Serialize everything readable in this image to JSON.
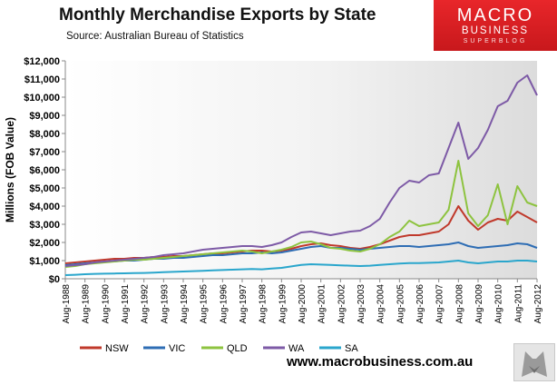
{
  "header": {
    "title": "Monthly Merchandise Exports by State",
    "source": "Source:  Australian Bureau of Statistics"
  },
  "logo": {
    "line1": "MACRO",
    "line2": "BUSINESS",
    "line3": "SUPERBLOG"
  },
  "footer": {
    "url": "www.macrobusiness.com.au"
  },
  "badge_icon": "wolf-icon",
  "chart_data": {
    "type": "line",
    "title": "Monthly Merchandise Exports by State",
    "subtitle": "Source:  Australian Bureau of Statistics",
    "ylabel": "Millions (FOB Value)",
    "xlabel": "",
    "ylim": [
      0,
      12000
    ],
    "grid": false,
    "legend": "bottom",
    "y_ticks": [
      0,
      1000,
      2000,
      3000,
      4000,
      5000,
      6000,
      7000,
      8000,
      9000,
      10000,
      11000,
      12000
    ],
    "y_tick_labels": [
      "$0",
      "$1,000",
      "$2,000",
      "$3,000",
      "$4,000",
      "$5,000",
      "$6,000",
      "$7,000",
      "$8,000",
      "$9,000",
      "$10,000",
      "$11,000",
      "$12,000"
    ],
    "x_tick_labels": [
      "Aug-1988",
      "Aug-1989",
      "Aug-1990",
      "Aug-1991",
      "Aug-1992",
      "Aug-1993",
      "Aug-1994",
      "Aug-1995",
      "Aug-1996",
      "Aug-1997",
      "Aug-1998",
      "Aug-1999",
      "Aug-2000",
      "Aug-2001",
      "Aug-2002",
      "Aug-2003",
      "Aug-2004",
      "Aug-2005",
      "Aug-2006",
      "Aug-2007",
      "Aug-2008",
      "Aug-2009",
      "Aug-2010",
      "Aug-2011",
      "Aug-2012"
    ],
    "x": [
      "Aug-1988",
      "Feb-1989",
      "Aug-1989",
      "Feb-1990",
      "Aug-1990",
      "Feb-1991",
      "Aug-1991",
      "Feb-1992",
      "Aug-1992",
      "Feb-1993",
      "Aug-1993",
      "Feb-1994",
      "Aug-1994",
      "Feb-1995",
      "Aug-1995",
      "Feb-1996",
      "Aug-1996",
      "Feb-1997",
      "Aug-1997",
      "Feb-1998",
      "Aug-1998",
      "Feb-1999",
      "Aug-1999",
      "Feb-2000",
      "Aug-2000",
      "Feb-2001",
      "Aug-2001",
      "Feb-2002",
      "Aug-2002",
      "Feb-2003",
      "Aug-2003",
      "Feb-2004",
      "Aug-2004",
      "Feb-2005",
      "Aug-2005",
      "Feb-2006",
      "Aug-2006",
      "Feb-2007",
      "Aug-2007",
      "Feb-2008",
      "Aug-2008",
      "Feb-2009",
      "Aug-2009",
      "Feb-2010",
      "Aug-2010",
      "Feb-2011",
      "Aug-2011",
      "Feb-2012",
      "Aug-2012"
    ],
    "series": [
      {
        "name": "NSW",
        "color": "#c0392b",
        "values": [
          850,
          900,
          950,
          1000,
          1050,
          1100,
          1100,
          1150,
          1150,
          1200,
          1200,
          1250,
          1250,
          1300,
          1350,
          1400,
          1400,
          1450,
          1500,
          1550,
          1550,
          1500,
          1550,
          1650,
          1800,
          1900,
          1950,
          1850,
          1800,
          1700,
          1650,
          1750,
          1900,
          2100,
          2300,
          2400,
          2400,
          2500,
          2600,
          3000,
          4000,
          3200,
          2700,
          3100,
          3300,
          3200,
          3700,
          3400,
          3100
        ]
      },
      {
        "name": "VIC",
        "color": "#2e6db4",
        "values": [
          750,
          800,
          850,
          900,
          950,
          950,
          1000,
          1000,
          1050,
          1100,
          1100,
          1150,
          1150,
          1200,
          1250,
          1300,
          1300,
          1350,
          1400,
          1400,
          1450,
          1400,
          1450,
          1550,
          1650,
          1750,
          1800,
          1700,
          1700,
          1650,
          1600,
          1650,
          1700,
          1750,
          1800,
          1800,
          1750,
          1800,
          1850,
          1900,
          2000,
          1800,
          1700,
          1750,
          1800,
          1850,
          1950,
          1900,
          1700
        ]
      },
      {
        "name": "QLD",
        "color": "#8dc33f",
        "values": [
          650,
          700,
          800,
          850,
          900,
          950,
          1000,
          1050,
          1050,
          1100,
          1150,
          1200,
          1250,
          1300,
          1350,
          1400,
          1450,
          1500,
          1550,
          1500,
          1400,
          1500,
          1600,
          1750,
          2000,
          2050,
          1900,
          1700,
          1650,
          1550,
          1500,
          1650,
          1900,
          2300,
          2600,
          3200,
          2900,
          3000,
          3100,
          3800,
          6500,
          3600,
          2900,
          3500,
          5200,
          3000,
          5100,
          4200,
          4000
        ]
      },
      {
        "name": "WA",
        "color": "#7d5aa6",
        "values": [
          700,
          750,
          800,
          900,
          950,
          1000,
          1050,
          1100,
          1150,
          1200,
          1300,
          1350,
          1400,
          1500,
          1600,
          1650,
          1700,
          1750,
          1800,
          1800,
          1750,
          1850,
          2000,
          2300,
          2550,
          2600,
          2500,
          2400,
          2500,
          2600,
          2650,
          2900,
          3300,
          4200,
          5000,
          5400,
          5300,
          5700,
          5800,
          7200,
          8600,
          6600,
          7200,
          8200,
          9500,
          9800,
          10800,
          11200,
          10100
        ]
      },
      {
        "name": "SA",
        "color": "#2aa6cc",
        "values": [
          200,
          220,
          250,
          270,
          280,
          290,
          300,
          310,
          320,
          340,
          360,
          380,
          400,
          420,
          440,
          460,
          480,
          500,
          520,
          540,
          520,
          560,
          600,
          680,
          760,
          800,
          780,
          760,
          740,
          720,
          700,
          720,
          760,
          800,
          840,
          860,
          860,
          880,
          900,
          950,
          1000,
          900,
          850,
          900,
          950,
          950,
          1000,
          1000,
          950
        ]
      }
    ]
  }
}
